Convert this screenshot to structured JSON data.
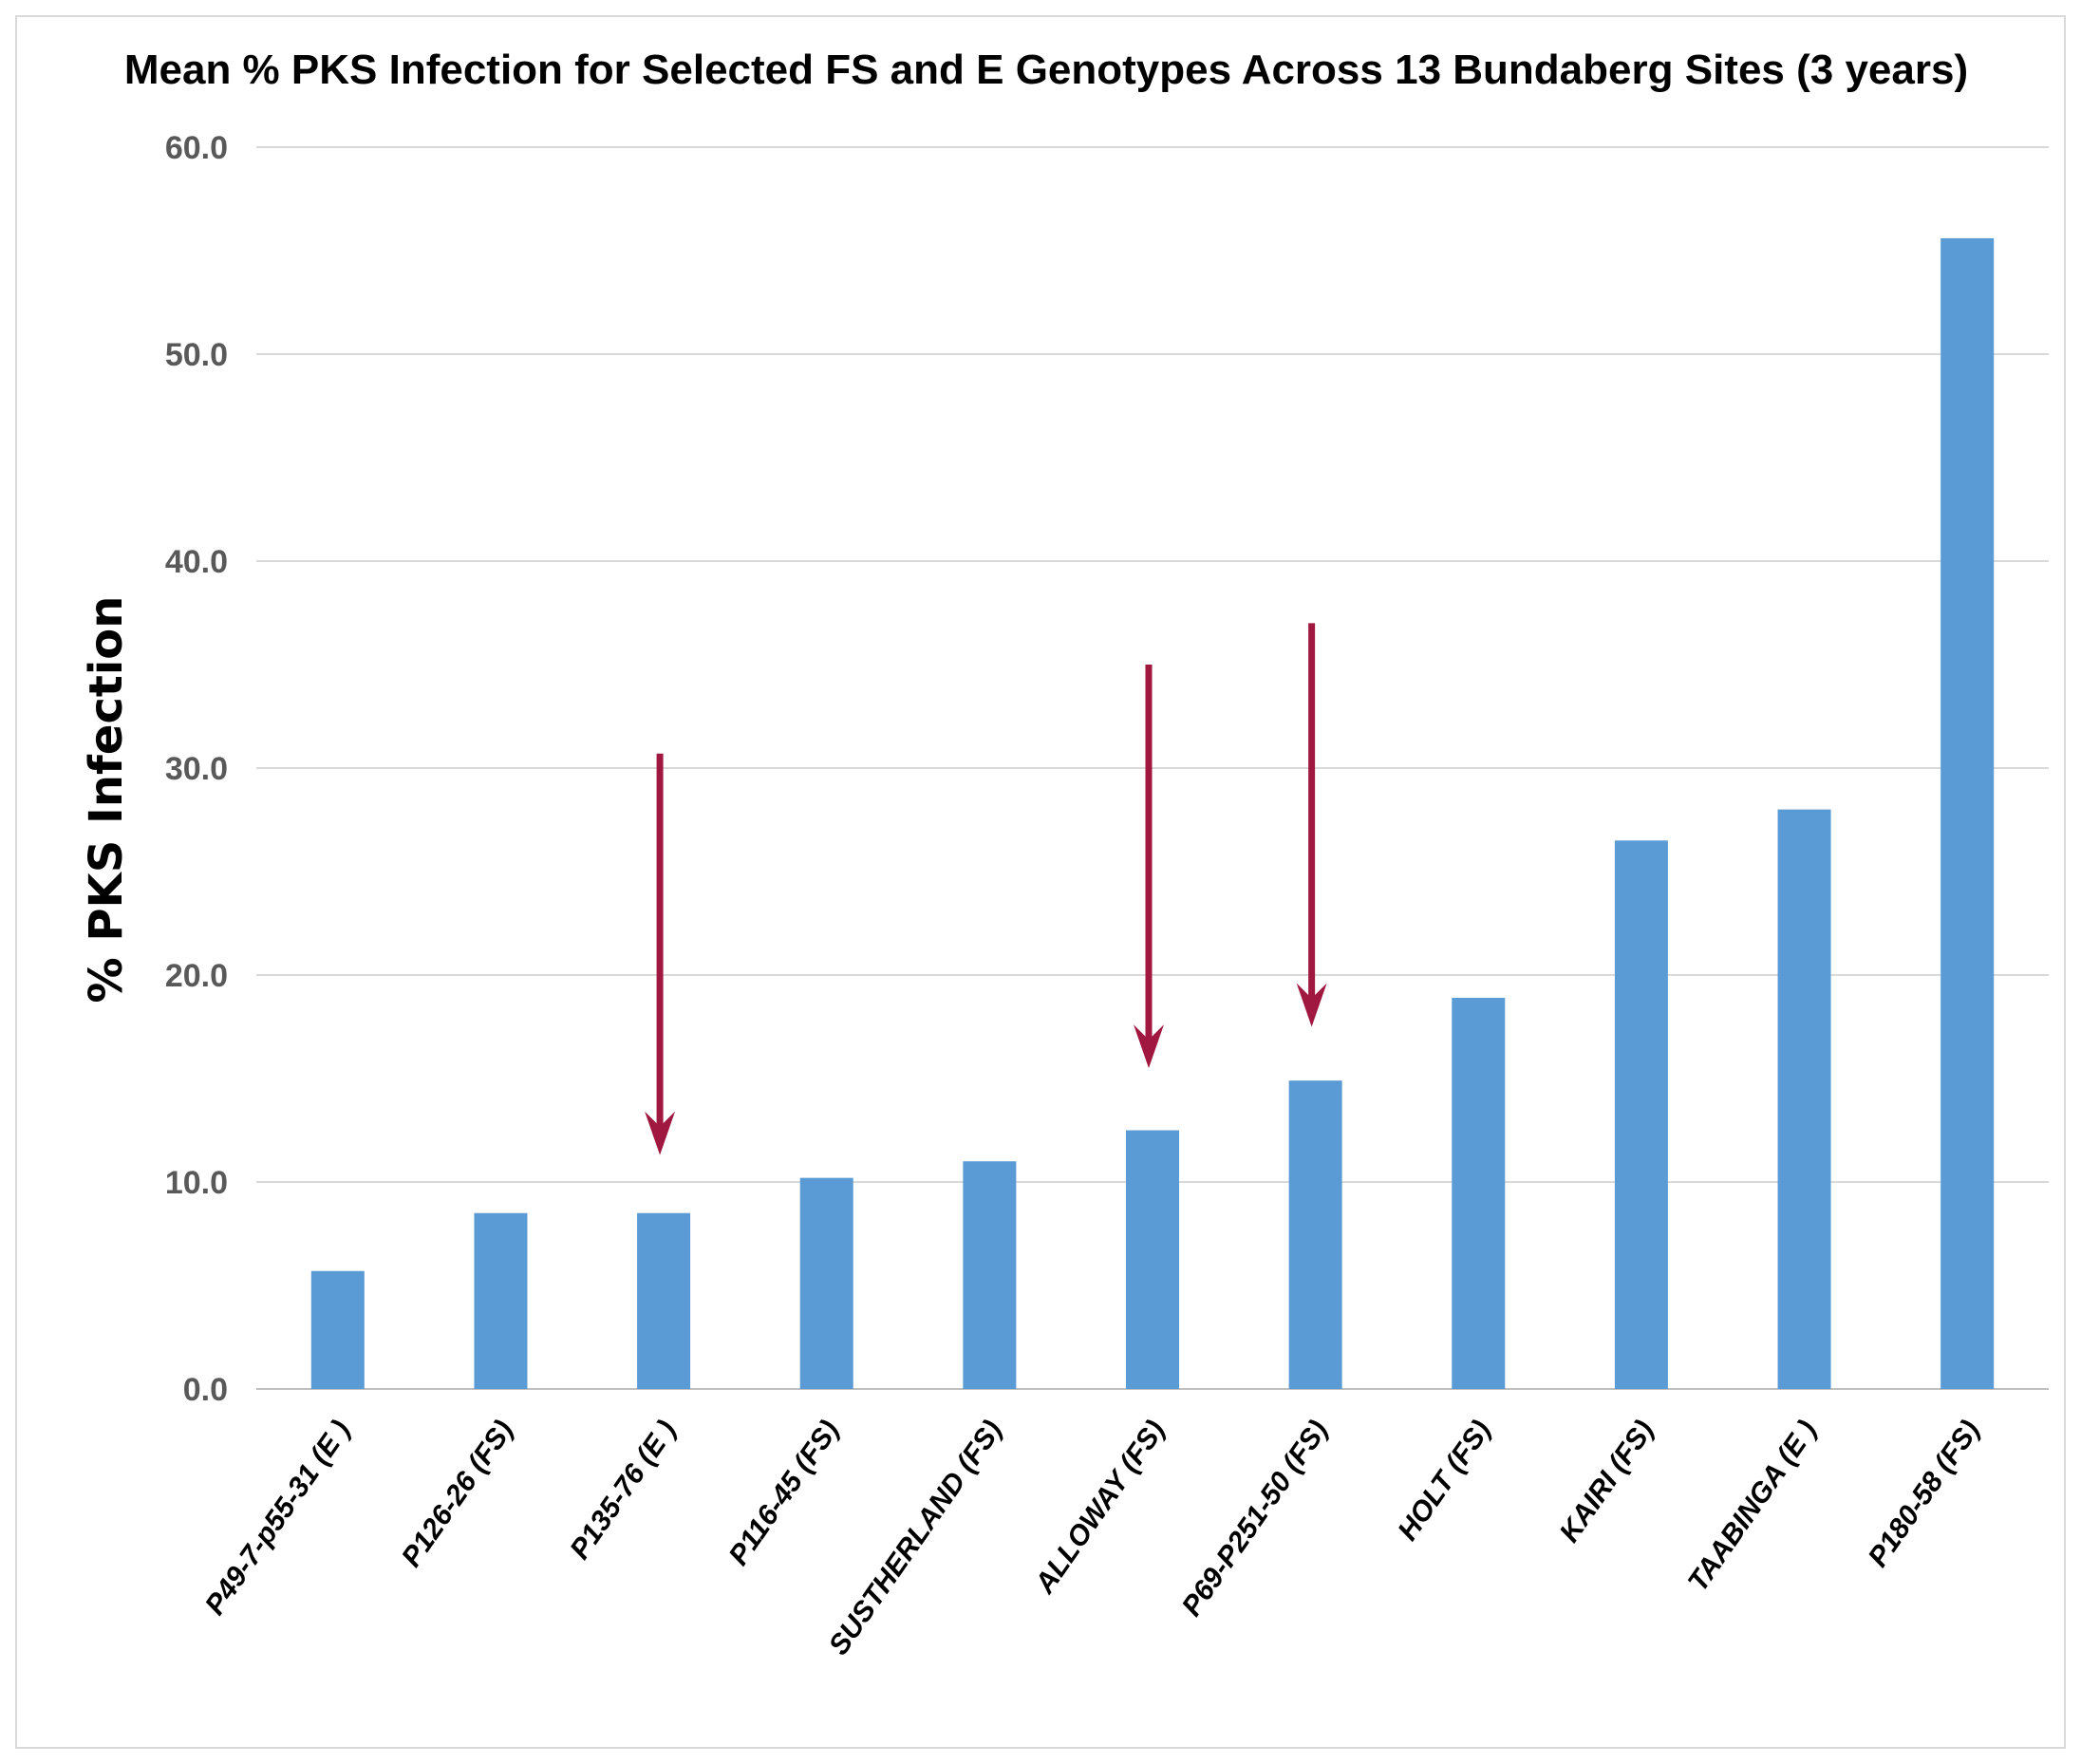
{
  "chart_data": {
    "type": "bar",
    "title": "Mean % PKS Infection for Selected FS and E Genotypes Across 13 Bundaberg Sites (3 years)",
    "xlabel": "",
    "ylabel": "% PKS Infection",
    "ylim": [
      0,
      60
    ],
    "yticks": [
      "0.0",
      "10.0",
      "20.0",
      "30.0",
      "40.0",
      "50.0",
      "60.0"
    ],
    "grid": true,
    "legend": "none",
    "categories": [
      "P49-7-p55-31 (E )",
      "P126-26 (FS)",
      "P135-76 (E )",
      "P116-45 (FS)",
      "SUSTHERLAND (FS)",
      "ALLOWAY (FS)",
      "P69-P251-50 (FS)",
      "HOLT (FS)",
      "KAIRI (FS)",
      "TAABINGA (E )",
      "P180-58 (FS)"
    ],
    "values": [
      5.7,
      8.5,
      8.5,
      10.2,
      11.0,
      12.5,
      14.9,
      18.9,
      26.5,
      28.0,
      55.6
    ],
    "bar_color": "#5b9bd5",
    "annotations": [
      {
        "type": "arrow",
        "category_index": 2,
        "from_y": 30.7,
        "to_y": 11.3,
        "color": "#a0173f"
      },
      {
        "type": "arrow",
        "category_index": 5,
        "from_y": 35.0,
        "to_y": 15.5,
        "color": "#a0173f"
      },
      {
        "type": "arrow",
        "category_index": 6,
        "from_y": 37.0,
        "to_y": 17.5,
        "color": "#a0173f"
      }
    ]
  }
}
